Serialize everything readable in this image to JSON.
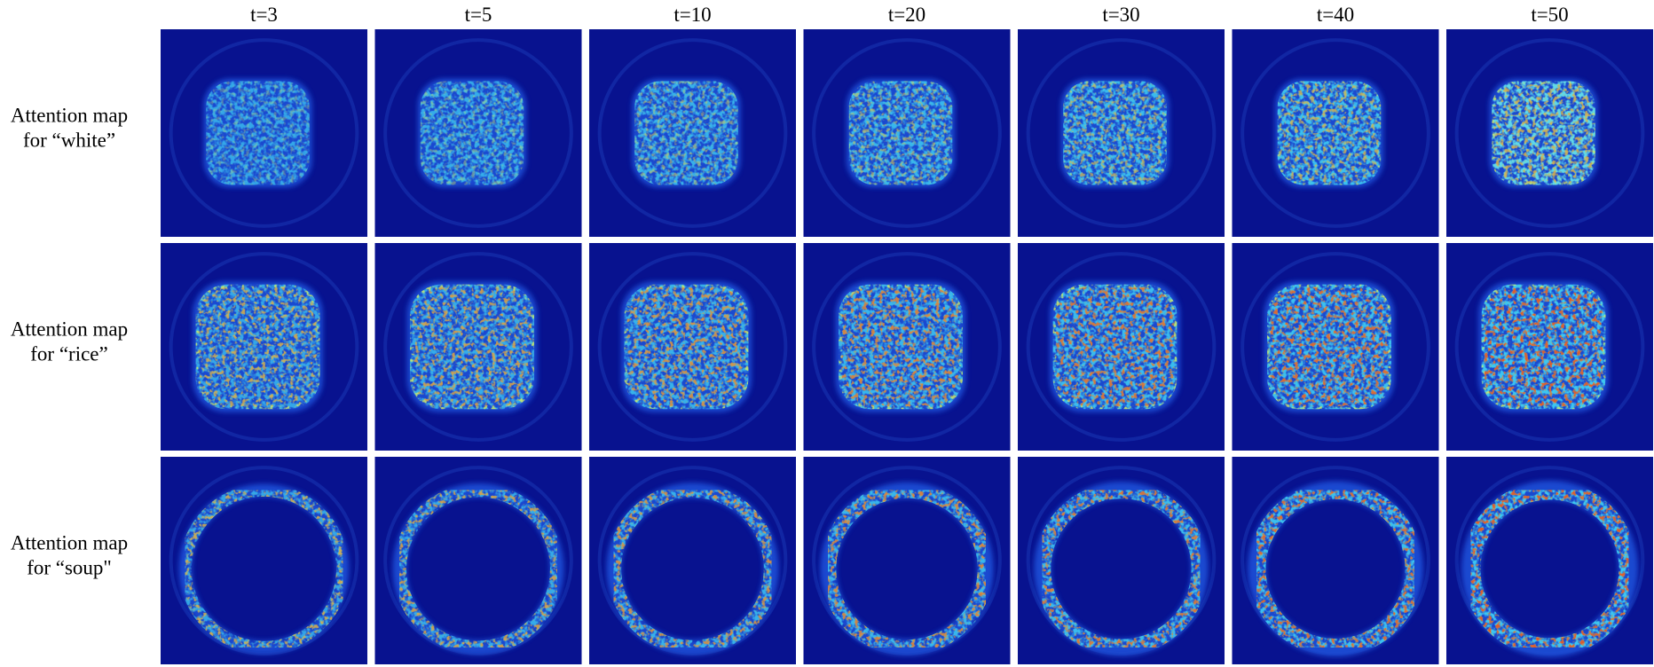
{
  "columns": [
    "t=3",
    "t=5",
    "t=10",
    "t=20",
    "t=30",
    "t=40",
    "t=50"
  ],
  "rows": [
    {
      "label": [
        "Attention map",
        "for “white”"
      ]
    },
    {
      "label": [
        "Attention map",
        "for “rice”"
      ]
    },
    {
      "label": [
        "Attention map",
        "for “soup\""
      ]
    }
  ]
}
